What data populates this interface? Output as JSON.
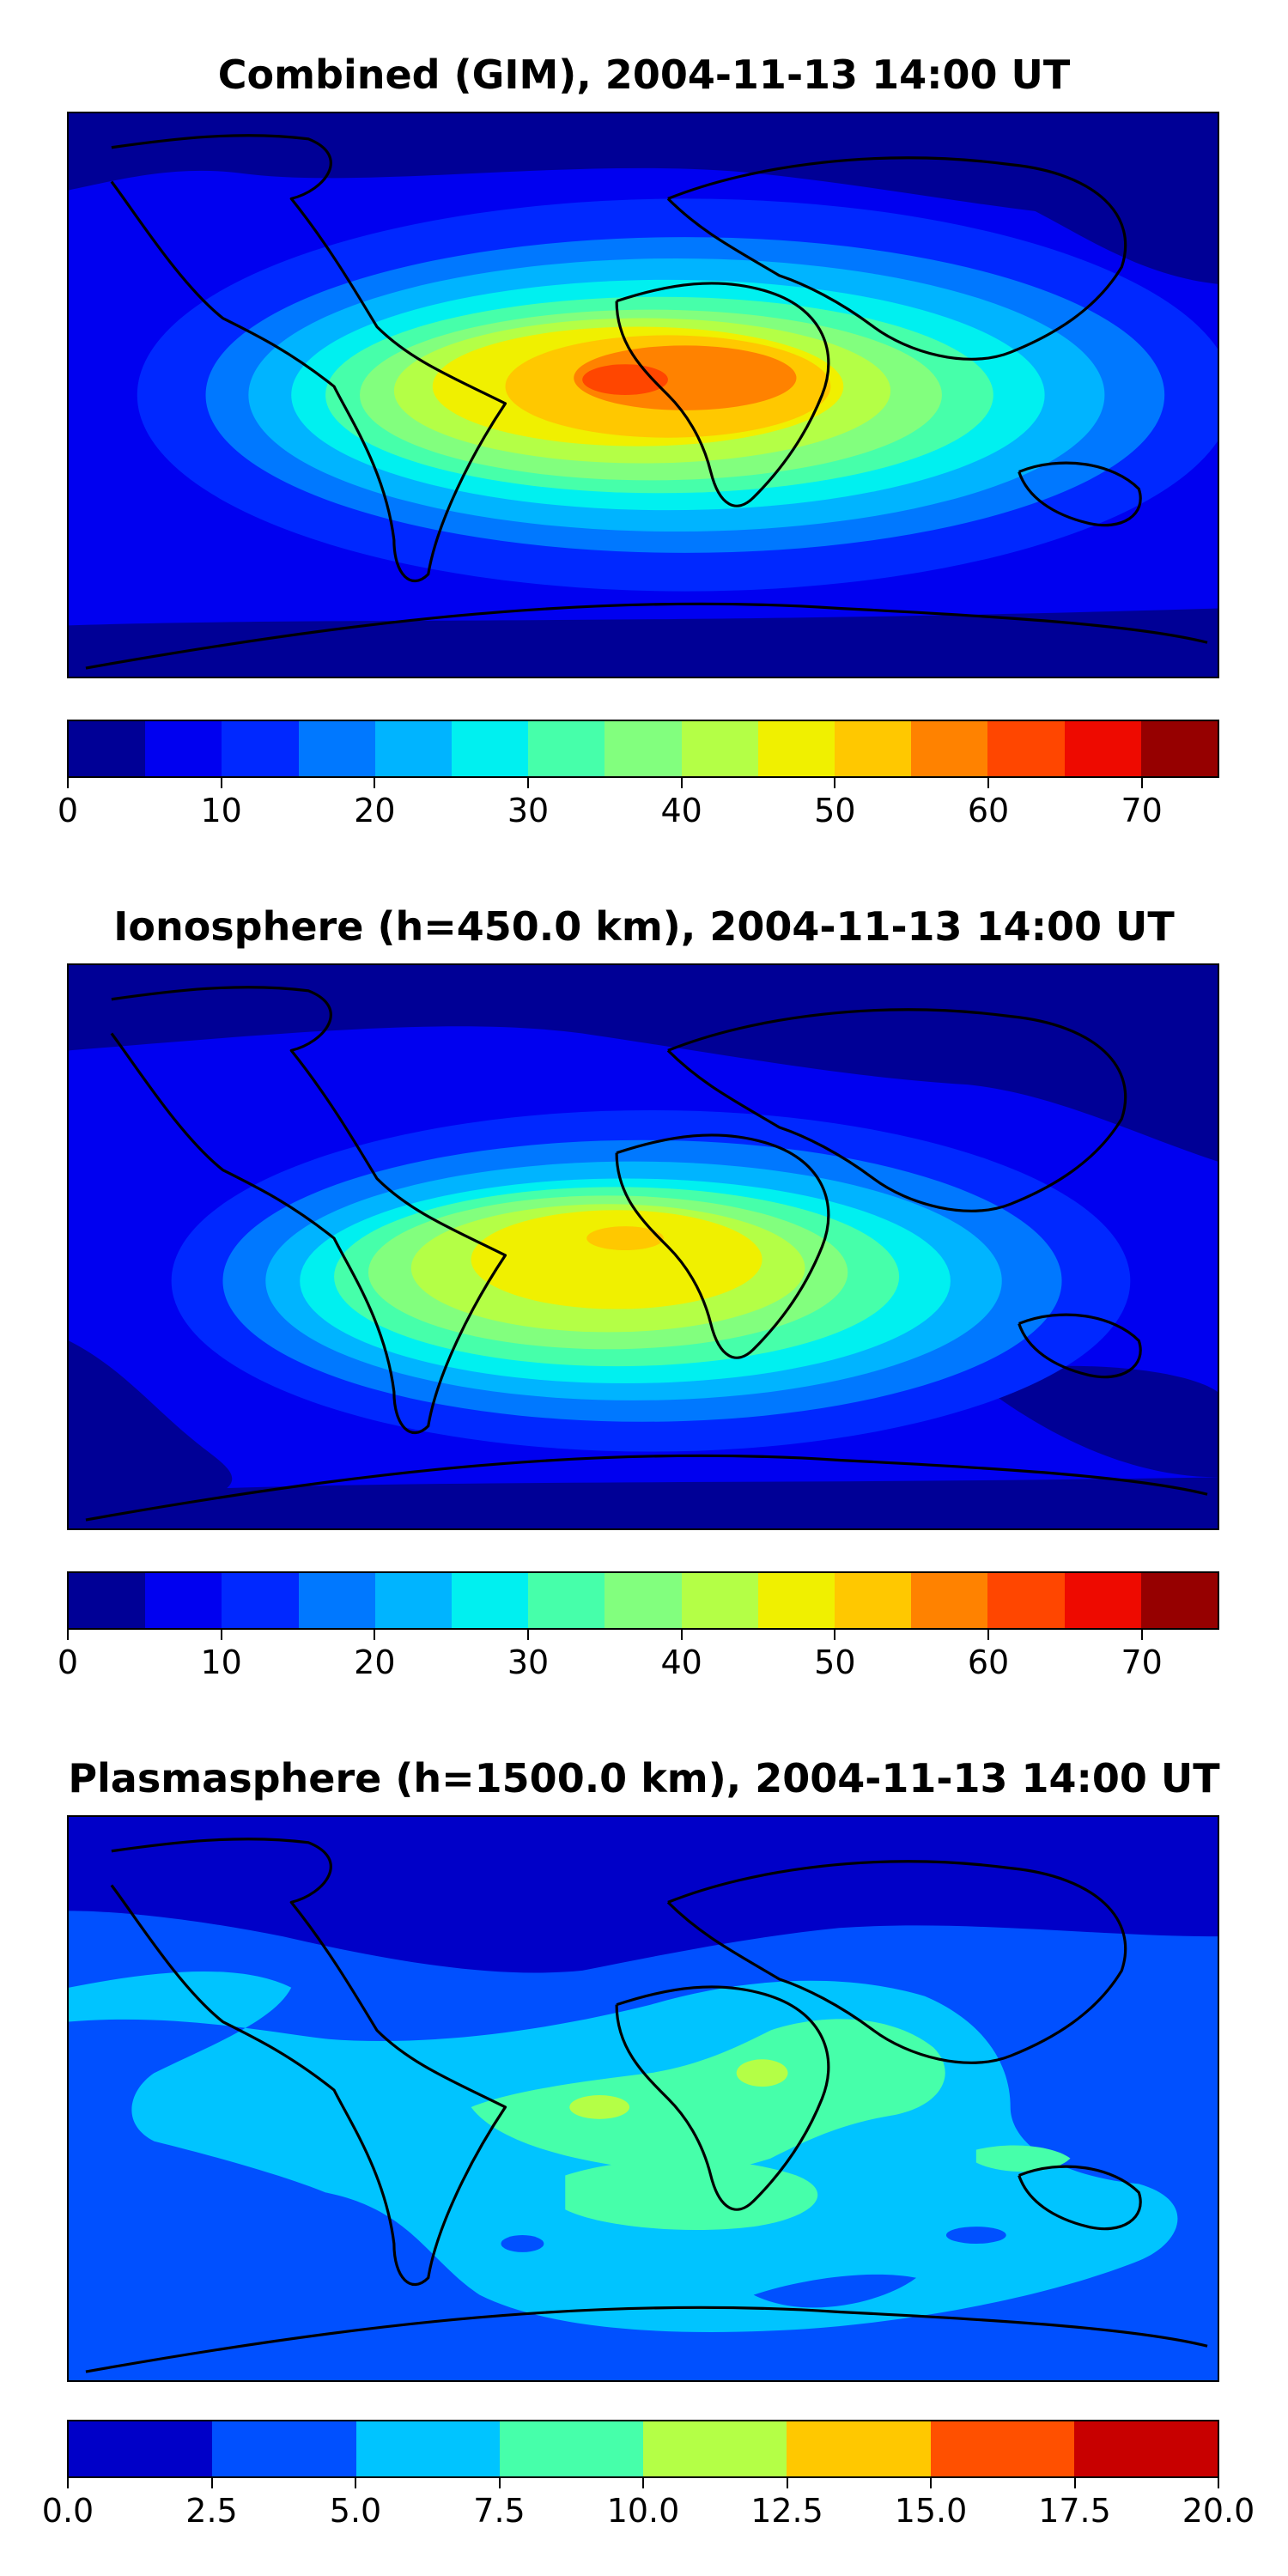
{
  "panels": [
    {
      "title": "Combined (GIM), 2004-11-13 14:00 UT",
      "colorbar": {
        "colors": [
          "#000096",
          "#0000f0",
          "#0028ff",
          "#0078ff",
          "#00b4ff",
          "#00f0f0",
          "#46ffaa",
          "#82ff7e",
          "#b4ff46",
          "#f0f000",
          "#ffc800",
          "#ff8200",
          "#ff4600",
          "#ee0a00",
          "#960000"
        ],
        "tick_labels": [
          "0",
          "10",
          "20",
          "30",
          "40",
          "50",
          "60",
          "70"
        ],
        "tick_values": [
          0,
          10,
          20,
          30,
          40,
          50,
          60,
          70
        ],
        "range": [
          0,
          75
        ]
      }
    },
    {
      "title": "Ionosphere  (h=450.0 km), 2004-11-13 14:00 UT",
      "colorbar": {
        "colors": [
          "#000096",
          "#0000f0",
          "#0028ff",
          "#0078ff",
          "#00b4ff",
          "#00f0f0",
          "#46ffaa",
          "#82ff7e",
          "#b4ff46",
          "#f0f000",
          "#ffc800",
          "#ff8200",
          "#ff4600",
          "#ee0a00",
          "#960000"
        ],
        "tick_labels": [
          "0",
          "10",
          "20",
          "30",
          "40",
          "50",
          "60",
          "70"
        ],
        "tick_values": [
          0,
          10,
          20,
          30,
          40,
          50,
          60,
          70
        ],
        "range": [
          0,
          75
        ]
      }
    },
    {
      "title": "Plasmasphere (h=1500.0 km), 2004-11-13 14:00 UT",
      "colorbar": {
        "colors": [
          "#0000c8",
          "#0050ff",
          "#00c4ff",
          "#46ffaa",
          "#b4ff46",
          "#ffc800",
          "#ff5000",
          "#c80000"
        ],
        "tick_labels": [
          "0.0",
          "2.5",
          "5.0",
          "7.5",
          "10.0",
          "12.5",
          "15.0",
          "17.5",
          "20.0"
        ],
        "tick_values": [
          0,
          2.5,
          5,
          7.5,
          10,
          12.5,
          15,
          17.5,
          20
        ],
        "range": [
          0,
          20
        ]
      }
    }
  ]
}
